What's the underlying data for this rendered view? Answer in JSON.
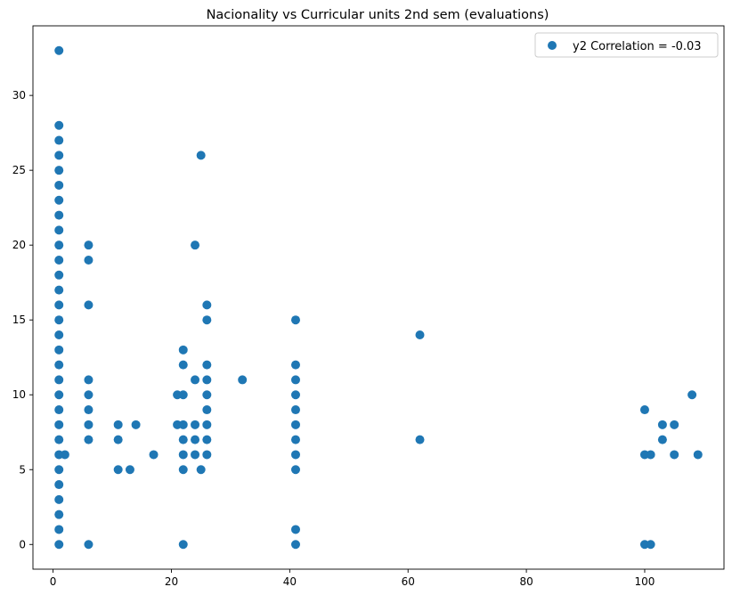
{
  "chart_data": {
    "type": "scatter",
    "title": "Nacionality vs Curricular units 2nd sem (evaluations)",
    "xlabel": "",
    "ylabel": "",
    "xlim": [
      -3.4,
      113.4
    ],
    "ylim": [
      -1.65,
      34.65
    ],
    "x_ticks": [
      0,
      20,
      40,
      60,
      80,
      100
    ],
    "y_ticks": [
      0,
      5,
      10,
      15,
      20,
      25,
      30
    ],
    "grid": false,
    "legend": {
      "position": "top-right",
      "entries": [
        "y2 Correlation = -0.03"
      ]
    },
    "marker_color": "#1f77b4",
    "series": [
      {
        "name": "y2 Correlation = -0.03",
        "points": [
          [
            1,
            0
          ],
          [
            1,
            1
          ],
          [
            1,
            2
          ],
          [
            1,
            3
          ],
          [
            1,
            4
          ],
          [
            1,
            5
          ],
          [
            1,
            6
          ],
          [
            1,
            7
          ],
          [
            1,
            8
          ],
          [
            1,
            9
          ],
          [
            1,
            10
          ],
          [
            1,
            11
          ],
          [
            1,
            12
          ],
          [
            1,
            13
          ],
          [
            1,
            14
          ],
          [
            1,
            15
          ],
          [
            1,
            16
          ],
          [
            1,
            17
          ],
          [
            1,
            18
          ],
          [
            1,
            19
          ],
          [
            1,
            20
          ],
          [
            1,
            21
          ],
          [
            1,
            22
          ],
          [
            1,
            23
          ],
          [
            1,
            24
          ],
          [
            1,
            25
          ],
          [
            1,
            26
          ],
          [
            1,
            27
          ],
          [
            1,
            28
          ],
          [
            1,
            33
          ],
          [
            2,
            6
          ],
          [
            6,
            0
          ],
          [
            6,
            7
          ],
          [
            6,
            8
          ],
          [
            6,
            9
          ],
          [
            6,
            10
          ],
          [
            6,
            11
          ],
          [
            6,
            16
          ],
          [
            6,
            19
          ],
          [
            6,
            20
          ],
          [
            11,
            5
          ],
          [
            11,
            7
          ],
          [
            11,
            8
          ],
          [
            13,
            5
          ],
          [
            14,
            8
          ],
          [
            17,
            6
          ],
          [
            21,
            8
          ],
          [
            21,
            10
          ],
          [
            22,
            0
          ],
          [
            22,
            5
          ],
          [
            22,
            6
          ],
          [
            22,
            7
          ],
          [
            22,
            8
          ],
          [
            22,
            10
          ],
          [
            22,
            12
          ],
          [
            22,
            13
          ],
          [
            24,
            6
          ],
          [
            24,
            7
          ],
          [
            24,
            8
          ],
          [
            24,
            11
          ],
          [
            24,
            20
          ],
          [
            25,
            5
          ],
          [
            25,
            26
          ],
          [
            26,
            6
          ],
          [
            26,
            7
          ],
          [
            26,
            8
          ],
          [
            26,
            9
          ],
          [
            26,
            10
          ],
          [
            26,
            11
          ],
          [
            26,
            12
          ],
          [
            26,
            15
          ],
          [
            26,
            16
          ],
          [
            32,
            11
          ],
          [
            41,
            0
          ],
          [
            41,
            1
          ],
          [
            41,
            5
          ],
          [
            41,
            6
          ],
          [
            41,
            7
          ],
          [
            41,
            8
          ],
          [
            41,
            9
          ],
          [
            41,
            10
          ],
          [
            41,
            11
          ],
          [
            41,
            12
          ],
          [
            41,
            15
          ],
          [
            62,
            7
          ],
          [
            62,
            14
          ],
          [
            100,
            0
          ],
          [
            100,
            6
          ],
          [
            100,
            9
          ],
          [
            101,
            0
          ],
          [
            101,
            6
          ],
          [
            103,
            7
          ],
          [
            103,
            8
          ],
          [
            105,
            6
          ],
          [
            105,
            8
          ],
          [
            108,
            10
          ],
          [
            109,
            6
          ]
        ]
      }
    ]
  }
}
